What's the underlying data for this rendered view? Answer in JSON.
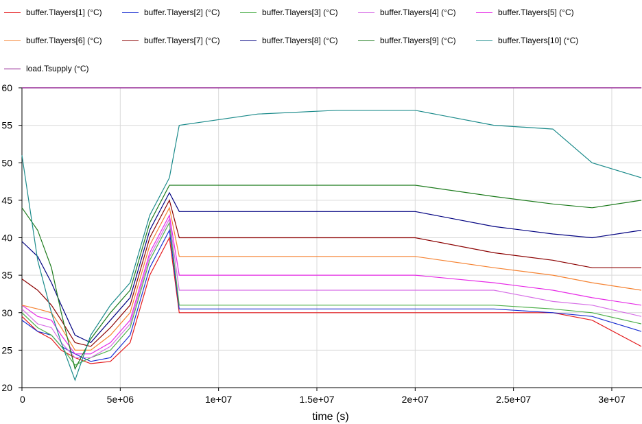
{
  "chart_data": {
    "type": "line",
    "title": "",
    "xlabel": "time (s)",
    "ylabel": "",
    "xlim": [
      0,
      31536000
    ],
    "ylim": [
      20,
      60
    ],
    "grid": true,
    "legend_position": "top",
    "x_ticks": [
      {
        "value": 0,
        "label": "0"
      },
      {
        "value": 5000000,
        "label": "5e+06"
      },
      {
        "value": 10000000,
        "label": "1e+07"
      },
      {
        "value": 15000000,
        "label": "1.5e+07"
      },
      {
        "value": 20000000,
        "label": "2e+07"
      },
      {
        "value": 25000000,
        "label": "2.5e+07"
      },
      {
        "value": 30000000,
        "label": "3e+07"
      }
    ],
    "y_ticks": [
      {
        "value": 20,
        "label": "20"
      },
      {
        "value": 25,
        "label": "25"
      },
      {
        "value": 30,
        "label": "30"
      },
      {
        "value": 35,
        "label": "35"
      },
      {
        "value": 40,
        "label": "40"
      },
      {
        "value": 45,
        "label": "45"
      },
      {
        "value": 50,
        "label": "50"
      },
      {
        "value": 55,
        "label": "55"
      },
      {
        "value": 60,
        "label": "60"
      }
    ],
    "x": [
      0,
      800000,
      1500000,
      2000000,
      2700000,
      3500000,
      4500000,
      5500000,
      6500000,
      7500000,
      8000000,
      12000000,
      16000000,
      20000000,
      24000000,
      27000000,
      29000000,
      31500000
    ],
    "series": [
      {
        "name": "buffer.Tlayers[1] (°C)",
        "color": "#e41a1c",
        "values": [
          29.5,
          27.5,
          26.5,
          25,
          24,
          23.2,
          23.5,
          26,
          35,
          40,
          30,
          30,
          30,
          30,
          30,
          30,
          29,
          25.5
        ]
      },
      {
        "name": "buffer.Tlayers[2] (°C)",
        "color": "#1a2fd1",
        "values": [
          29,
          27.5,
          27,
          25.5,
          24.5,
          23.5,
          24,
          27,
          36,
          41,
          30.5,
          30.5,
          30.5,
          30.5,
          30.5,
          30,
          29.5,
          27.5
        ]
      },
      {
        "name": "buffer.Tlayers[3] (°C)",
        "color": "#4daf4a",
        "values": [
          30,
          28,
          27,
          25.5,
          23,
          24,
          25,
          28,
          37,
          42,
          31,
          31,
          31,
          31,
          31,
          30.5,
          30,
          28.5
        ]
      },
      {
        "name": "buffer.Tlayers[4] (°C)",
        "color": "#d66ee6",
        "values": [
          30.5,
          28.5,
          28,
          26,
          24,
          24,
          25.5,
          28.5,
          37.5,
          42.5,
          33,
          33,
          33,
          33,
          33,
          31.5,
          31,
          29.5
        ]
      },
      {
        "name": "buffer.Tlayers[5] (°C)",
        "color": "#e62ae6",
        "values": [
          31,
          29.5,
          29,
          27,
          24.5,
          24.5,
          26,
          29,
          38,
          43,
          35,
          35,
          35,
          35,
          34,
          33,
          32,
          31
        ]
      },
      {
        "name": "buffer.Tlayers[6] (°C)",
        "color": "#f58231",
        "values": [
          31,
          30.5,
          30,
          28,
          25,
          25,
          27,
          30,
          39,
          44,
          37.5,
          37.5,
          37.5,
          37.5,
          36,
          35,
          34,
          33
        ]
      },
      {
        "name": "buffer.Tlayers[7] (°C)",
        "color": "#8b0000",
        "values": [
          34.5,
          33,
          31,
          29,
          26,
          25.5,
          28,
          31,
          40,
          45,
          40,
          40,
          40,
          40,
          38,
          37,
          36,
          36
        ]
      },
      {
        "name": "buffer.Tlayers[8] (°C)",
        "color": "#000080",
        "values": [
          39.5,
          37.5,
          34,
          31,
          27,
          26,
          29,
          32,
          41,
          46,
          43.5,
          43.5,
          43.5,
          43.5,
          41.5,
          40.5,
          40,
          41
        ]
      },
      {
        "name": "buffer.Tlayers[9] (°C)",
        "color": "#1b7a1b",
        "values": [
          44,
          41,
          36,
          30,
          22.5,
          26.5,
          30,
          33,
          42,
          47,
          47,
          47,
          47,
          47,
          45.5,
          44.5,
          44,
          45
        ]
      },
      {
        "name": "buffer.Tlayers[10] (°C)",
        "color": "#1a8a8a",
        "values": [
          51,
          37,
          30,
          26,
          21,
          27,
          31,
          34,
          43,
          48,
          55,
          56.5,
          57,
          57,
          55,
          54.5,
          50,
          48
        ]
      },
      {
        "name": "load.Tsupply (°C)",
        "color": "#800080",
        "values": [
          60,
          60,
          60,
          60,
          60,
          60,
          60,
          60,
          60,
          60,
          60,
          60,
          60,
          60,
          60,
          60,
          60,
          60
        ]
      }
    ]
  }
}
